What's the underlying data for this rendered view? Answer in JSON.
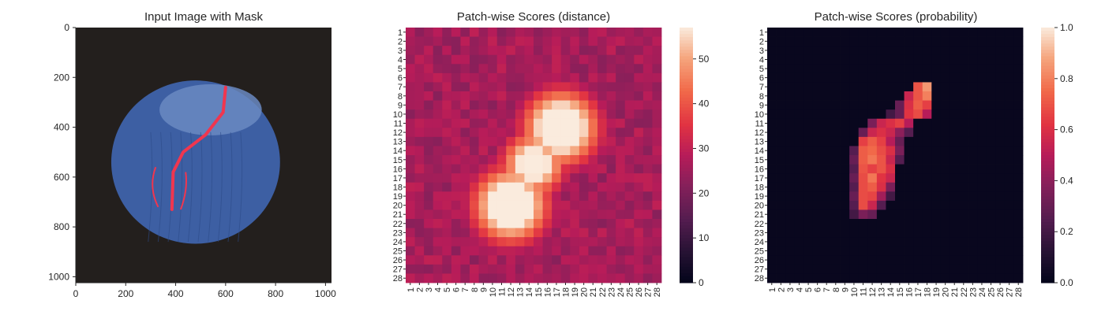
{
  "chart_data": [
    {
      "type": "image",
      "title": "Input Image with Mask",
      "xlim": [
        0,
        1024
      ],
      "ylim": [
        0,
        1024
      ],
      "x_ticks": [
        "0",
        "200",
        "400",
        "600",
        "800",
        "1000"
      ],
      "y_ticks": [
        "0",
        "200",
        "400",
        "600",
        "800",
        "1000"
      ],
      "colors": {
        "background": "#231f1d",
        "object": "#3d5fa3",
        "object_top": "#6a8ac2",
        "mask": "#f0364f"
      }
    },
    {
      "type": "heatmap",
      "title": "Patch-wise Scores (distance)",
      "grid_size": 28,
      "row_labels": [
        "1",
        "2",
        "3",
        "4",
        "5",
        "6",
        "7",
        "8",
        "9",
        "10",
        "11",
        "12",
        "13",
        "14",
        "15",
        "16",
        "17",
        "18",
        "19",
        "20",
        "21",
        "22",
        "23",
        "24",
        "25",
        "26",
        "27",
        "28"
      ],
      "col_labels": [
        "1",
        "2",
        "3",
        "4",
        "5",
        "6",
        "7",
        "8",
        "9",
        "10",
        "11",
        "12",
        "13",
        "14",
        "15",
        "16",
        "17",
        "18",
        "19",
        "20",
        "21",
        "22",
        "23",
        "24",
        "25",
        "26",
        "27",
        "28"
      ],
      "colorbar": {
        "min": 0,
        "max": 57,
        "ticks": [
          "0",
          "10",
          "20",
          "30",
          "40",
          "50"
        ]
      },
      "colormap": "rocket",
      "hotspots": [
        {
          "center": [
            11.5,
            17.5
          ],
          "value": 56
        },
        {
          "center": [
            20,
            12
          ],
          "value": 56
        }
      ],
      "background_level": 26
    },
    {
      "type": "heatmap",
      "title": "Patch-wise Scores (probability)",
      "grid_size": 28,
      "row_labels": [
        "1",
        "2",
        "3",
        "4",
        "5",
        "6",
        "7",
        "8",
        "9",
        "10",
        "11",
        "12",
        "13",
        "14",
        "15",
        "16",
        "17",
        "18",
        "19",
        "20",
        "21",
        "22",
        "23",
        "24",
        "25",
        "26",
        "27",
        "28"
      ],
      "col_labels": [
        "1",
        "2",
        "3",
        "4",
        "5",
        "6",
        "7",
        "8",
        "9",
        "10",
        "11",
        "12",
        "13",
        "14",
        "15",
        "16",
        "17",
        "18",
        "19",
        "20",
        "21",
        "22",
        "23",
        "24",
        "25",
        "26",
        "27",
        "28"
      ],
      "colorbar": {
        "min": 0,
        "max": 1,
        "ticks": [
          "0.0",
          "0.2",
          "0.4",
          "0.6",
          "0.8",
          "1.0"
        ]
      },
      "colormap": "rocket",
      "cells": [
        [
          7,
          17,
          0.7
        ],
        [
          7,
          18,
          0.85
        ],
        [
          8,
          16,
          0.55
        ],
        [
          8,
          17,
          0.7
        ],
        [
          8,
          18,
          0.8
        ],
        [
          9,
          15,
          0.3
        ],
        [
          9,
          16,
          0.6
        ],
        [
          9,
          17,
          0.72
        ],
        [
          9,
          18,
          0.65
        ],
        [
          10,
          14,
          0.2
        ],
        [
          10,
          15,
          0.3
        ],
        [
          10,
          16,
          0.62
        ],
        [
          10,
          17,
          0.68
        ],
        [
          10,
          18,
          0.5
        ],
        [
          11,
          12,
          0.35
        ],
        [
          11,
          13,
          0.55
        ],
        [
          11,
          14,
          0.6
        ],
        [
          11,
          15,
          0.65
        ],
        [
          11,
          16,
          0.5
        ],
        [
          12,
          11,
          0.3
        ],
        [
          12,
          12,
          0.55
        ],
        [
          12,
          13,
          0.6
        ],
        [
          12,
          14,
          0.55
        ],
        [
          12,
          15,
          0.4
        ],
        [
          12,
          16,
          0.25
        ],
        [
          13,
          11,
          0.65
        ],
        [
          13,
          12,
          0.72
        ],
        [
          13,
          13,
          0.65
        ],
        [
          13,
          14,
          0.5
        ],
        [
          13,
          15,
          0.3
        ],
        [
          14,
          10,
          0.25
        ],
        [
          14,
          11,
          0.72
        ],
        [
          14,
          12,
          0.75
        ],
        [
          14,
          13,
          0.68
        ],
        [
          14,
          14,
          0.6
        ],
        [
          14,
          15,
          0.35
        ],
        [
          15,
          10,
          0.3
        ],
        [
          15,
          11,
          0.72
        ],
        [
          15,
          12,
          0.78
        ],
        [
          15,
          13,
          0.7
        ],
        [
          15,
          14,
          0.55
        ],
        [
          15,
          15,
          0.25
        ],
        [
          16,
          10,
          0.25
        ],
        [
          16,
          11,
          0.7
        ],
        [
          16,
          12,
          0.65
        ],
        [
          16,
          13,
          0.7
        ],
        [
          16,
          14,
          0.6
        ],
        [
          17,
          10,
          0.3
        ],
        [
          17,
          11,
          0.68
        ],
        [
          17,
          12,
          0.78
        ],
        [
          17,
          13,
          0.62
        ],
        [
          17,
          14,
          0.55
        ],
        [
          18,
          10,
          0.25
        ],
        [
          18,
          11,
          0.68
        ],
        [
          18,
          12,
          0.72
        ],
        [
          18,
          13,
          0.6
        ],
        [
          18,
          14,
          0.35
        ],
        [
          19,
          10,
          0.3
        ],
        [
          19,
          11,
          0.68
        ],
        [
          19,
          12,
          0.66
        ],
        [
          19,
          13,
          0.45
        ],
        [
          19,
          14,
          0.2
        ],
        [
          20,
          10,
          0.25
        ],
        [
          20,
          11,
          0.68
        ],
        [
          20,
          12,
          0.55
        ],
        [
          20,
          13,
          0.25
        ],
        [
          21,
          10,
          0.2
        ],
        [
          21,
          11,
          0.35
        ],
        [
          21,
          12,
          0.3
        ]
      ]
    }
  ]
}
